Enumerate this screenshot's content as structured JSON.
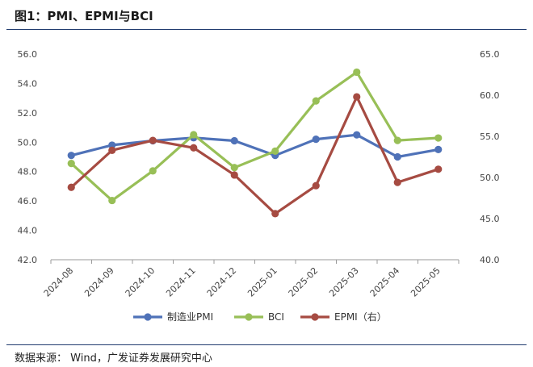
{
  "figure_title": "图1：PMI、EPMI与BCI",
  "source_label": "数据来源：",
  "source_text": "Wind，广发证券发展研究中心",
  "chart_data": {
    "type": "line",
    "categories": [
      "2024-08",
      "2024-09",
      "2024-10",
      "2024-11",
      "2024-12",
      "2025-01",
      "2025-02",
      "2025-03",
      "2025-04",
      "2025-05"
    ],
    "y_left": {
      "min": 42,
      "max": 56,
      "step": 2,
      "ticks": [
        "42.0",
        "44.0",
        "46.0",
        "48.0",
        "50.0",
        "52.0",
        "54.0",
        "56.0"
      ]
    },
    "y_right": {
      "min": 40,
      "max": 65,
      "step": 5,
      "ticks": [
        "40.0",
        "45.0",
        "50.0",
        "55.0",
        "60.0",
        "65.0"
      ]
    },
    "grid": false,
    "legend_position": "bottom",
    "series": [
      {
        "name": "制造业PMI",
        "axis": "left",
        "color": "#4f72b8",
        "values": [
          49.1,
          49.8,
          50.1,
          50.3,
          50.1,
          49.1,
          50.2,
          50.5,
          49.0,
          49.5
        ]
      },
      {
        "name": "BCI",
        "axis": "right",
        "color": "#98bf57",
        "values": [
          51.7,
          47.2,
          50.8,
          55.2,
          51.2,
          53.2,
          59.3,
          62.8,
          54.5,
          54.8
        ]
      },
      {
        "name": "EPMI（右）",
        "axis": "right",
        "color": "#a64b42",
        "values": [
          48.8,
          53.3,
          54.5,
          53.6,
          50.3,
          45.6,
          49.0,
          59.8,
          49.4,
          51.0
        ]
      }
    ]
  }
}
